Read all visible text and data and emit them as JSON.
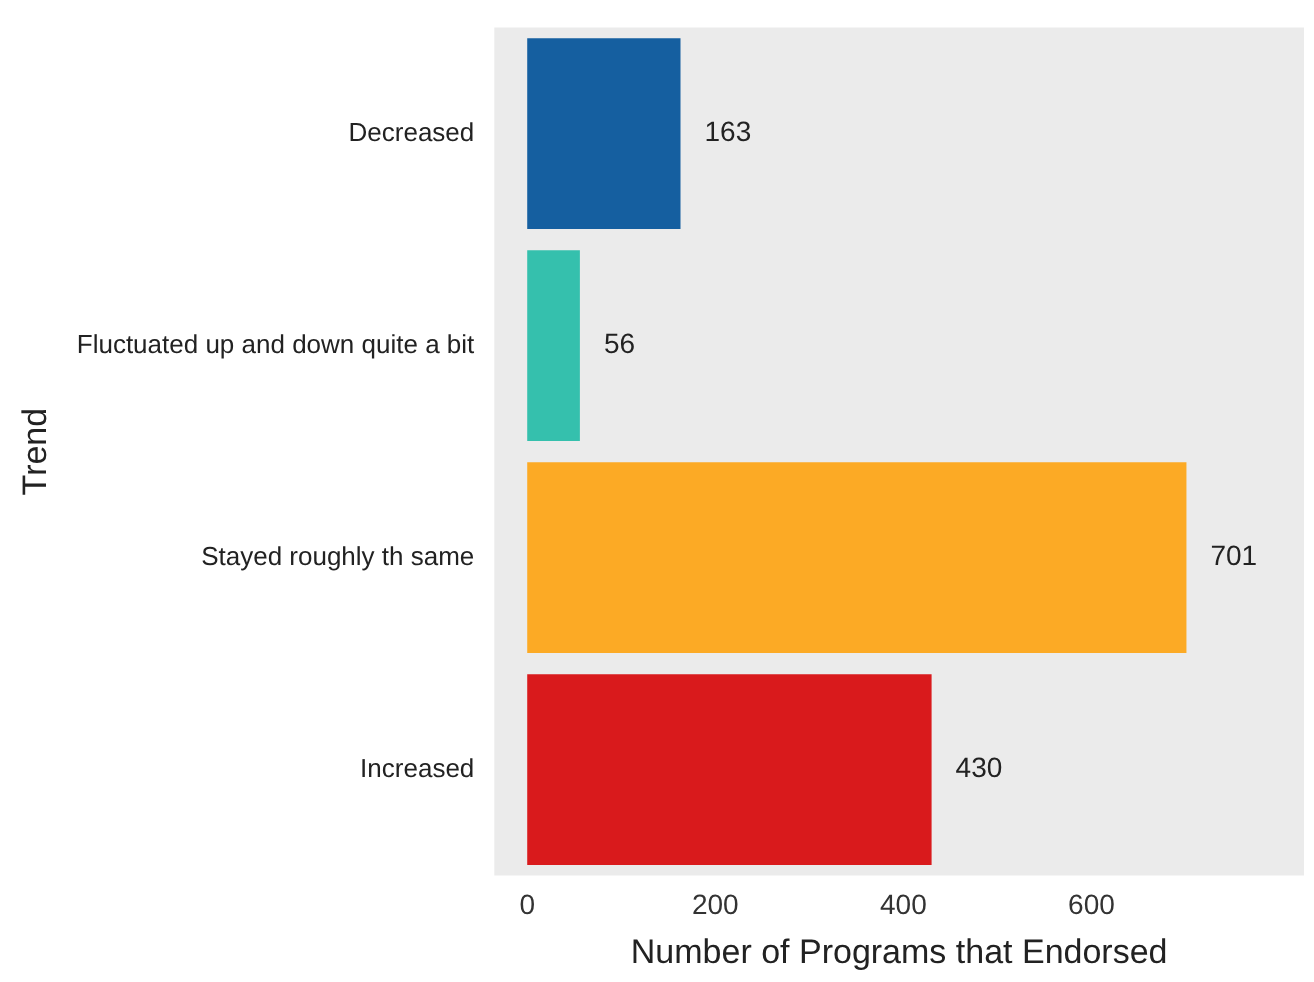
{
  "chart_data": {
    "type": "bar",
    "orientation": "horizontal",
    "xlabel": "Number of Programs that Endorsed",
    "ylabel": "Trend",
    "categories": [
      "Decreased",
      "Fluctuated up and down quite a bit",
      "Stayed roughly th same",
      "Increased"
    ],
    "values": [
      163,
      56,
      701,
      430
    ],
    "colors": [
      "#155fa0",
      "#35c0ad",
      "#fcaa25",
      "#d91a1c"
    ],
    "xlim": [
      -35,
      826
    ],
    "xticks": [
      0,
      200,
      400,
      600
    ],
    "grid": false,
    "legend": false,
    "data_labels": true
  }
}
